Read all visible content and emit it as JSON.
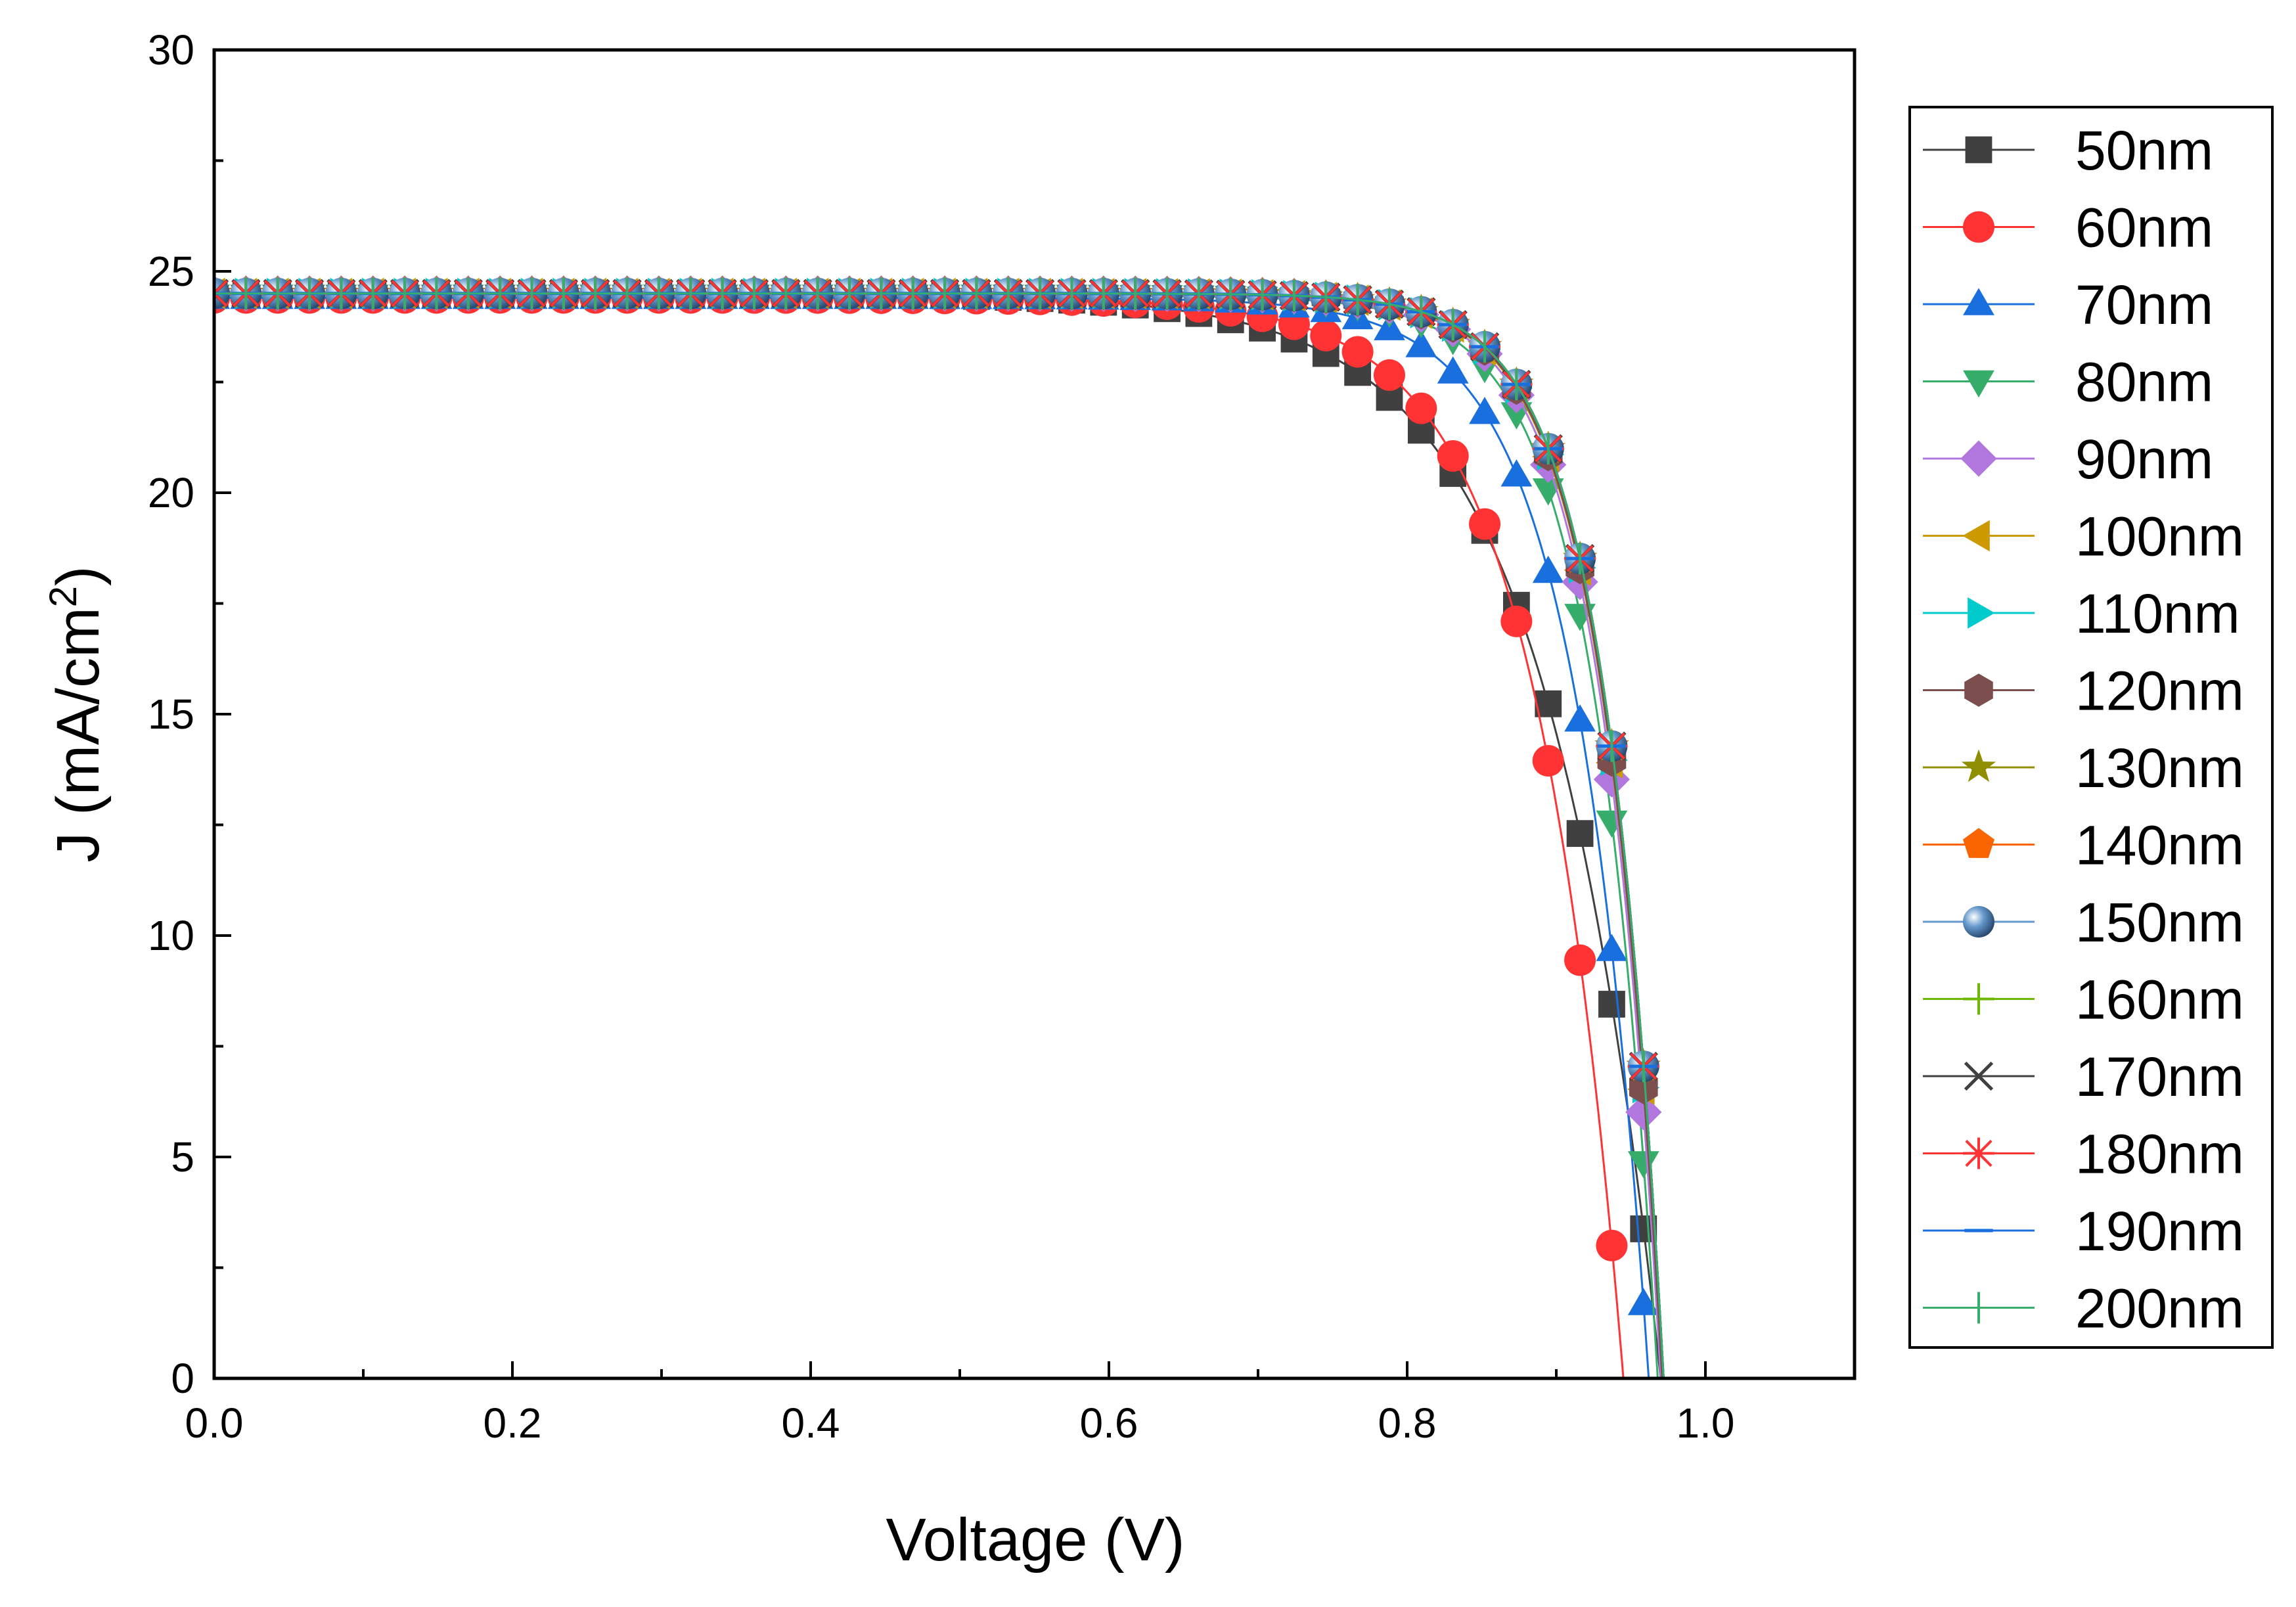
{
  "chart_data": {
    "type": "line",
    "title": "",
    "xlabel": "Voltage (V)",
    "ylabel": "J (mA/cm",
    "ylabel_superscript": "2",
    "ylabel_suffix": ")",
    "xlim": [
      0,
      1.1
    ],
    "ylim": [
      0,
      30
    ],
    "xticks": [
      0.0,
      0.2,
      0.4,
      0.6,
      0.8,
      1.0
    ],
    "xtick_labels": [
      "0.0",
      "0.2",
      "0.4",
      "0.6",
      "0.8",
      "1.0"
    ],
    "yticks": [
      0,
      5,
      10,
      15,
      20,
      25,
      30
    ],
    "ytick_labels": [
      "0",
      "5",
      "10",
      "15",
      "20",
      "25",
      "30"
    ],
    "legend_position": "right-outside",
    "x_step": 0.0213,
    "series": [
      {
        "name": "50nm",
        "color": "#404040",
        "marker": "square",
        "jsc": 24.5,
        "voc": 0.97,
        "n": 3.0
      },
      {
        "name": "60nm",
        "color": "#ff3333",
        "marker": "circle",
        "jsc": 24.4,
        "voc": 0.945,
        "n": 2.3
      },
      {
        "name": "70nm",
        "color": "#1a6fdf",
        "marker": "triangle-up",
        "jsc": 24.4,
        "voc": 0.962,
        "n": 1.9
      },
      {
        "name": "80nm",
        "color": "#37ad6b",
        "marker": "triangle-down",
        "jsc": 24.45,
        "voc": 0.968,
        "n": 1.65
      },
      {
        "name": "90nm",
        "color": "#b177de",
        "marker": "diamond",
        "jsc": 24.5,
        "voc": 0.97,
        "n": 1.58
      },
      {
        "name": "100nm",
        "color": "#cc9900",
        "marker": "triangle-left",
        "jsc": 24.5,
        "voc": 0.971,
        "n": 1.56
      },
      {
        "name": "110nm",
        "color": "#00cbcc",
        "marker": "triangle-right",
        "jsc": 24.5,
        "voc": 0.971,
        "n": 1.55
      },
      {
        "name": "120nm",
        "color": "#7d4e4e",
        "marker": "hexagon",
        "jsc": 24.5,
        "voc": 0.971,
        "n": 1.55
      },
      {
        "name": "130nm",
        "color": "#8e8e00",
        "marker": "star",
        "jsc": 24.5,
        "voc": 0.972,
        "n": 1.54
      },
      {
        "name": "140nm",
        "color": "#fb6501",
        "marker": "pentagon",
        "jsc": 24.5,
        "voc": 0.972,
        "n": 1.54
      },
      {
        "name": "150nm",
        "color": "#6699cc",
        "marker": "sphere",
        "jsc": 24.5,
        "voc": 0.972,
        "n": 1.54
      },
      {
        "name": "160nm",
        "color": "#6fb802",
        "marker": "plus",
        "jsc": 24.5,
        "voc": 0.972,
        "n": 1.54
      },
      {
        "name": "170nm",
        "color": "#404040",
        "marker": "cross",
        "jsc": 24.5,
        "voc": 0.972,
        "n": 1.54
      },
      {
        "name": "180nm",
        "color": "#ff3333",
        "marker": "asterisk",
        "jsc": 24.5,
        "voc": 0.972,
        "n": 1.54
      },
      {
        "name": "190nm",
        "color": "#1a6fdf",
        "marker": "dash",
        "jsc": 24.5,
        "voc": 0.972,
        "n": 1.54
      },
      {
        "name": "200nm",
        "color": "#37ad6b",
        "marker": "vbar",
        "jsc": 24.5,
        "voc": 0.972,
        "n": 1.54
      }
    ]
  }
}
